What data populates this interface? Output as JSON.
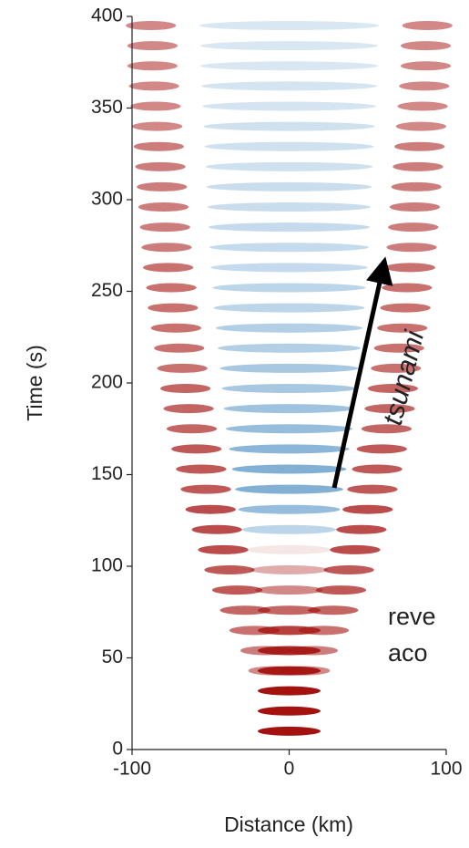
{
  "chart_data": {
    "type": "heatmap",
    "x_label": "Distance (km)",
    "y_label": "Time (s)",
    "xlim": [
      -100,
      100
    ],
    "ylim": [
      0,
      400
    ],
    "xticks": [
      -100,
      0,
      100
    ],
    "yticks": [
      0,
      50,
      100,
      150,
      200,
      250,
      300,
      350,
      400
    ],
    "positive_color": "#a3120f",
    "negative_color": "#3f86bf",
    "rows": {
      "time": [
        10,
        21,
        32,
        43,
        54,
        65,
        76,
        87,
        98,
        109,
        120,
        131,
        142,
        153,
        164,
        175,
        186,
        197,
        208,
        219,
        230,
        241,
        252,
        263,
        274,
        285,
        296,
        307,
        318,
        329,
        340,
        351,
        362,
        373,
        384,
        395
      ],
      "center": [
        1.0,
        1.0,
        1.0,
        0.95,
        0.9,
        0.8,
        0.65,
        0.5,
        0.35,
        0.1,
        -0.35,
        -0.55,
        -0.65,
        -0.65,
        -0.6,
        -0.55,
        -0.5,
        -0.45,
        -0.45,
        -0.4,
        -0.4,
        -0.35,
        -0.35,
        -0.3,
        -0.3,
        -0.3,
        -0.28,
        -0.28,
        -0.25,
        -0.25,
        -0.25,
        -0.22,
        -0.22,
        -0.2,
        -0.2,
        -0.2
      ],
      "side_distance": [
        0,
        0,
        0,
        10,
        15,
        22,
        28,
        33,
        38,
        42,
        46,
        50,
        53,
        56,
        59,
        62,
        64,
        66,
        68,
        70,
        72,
        74,
        75,
        77,
        78,
        79,
        80,
        81,
        82,
        83,
        84,
        85,
        86,
        87,
        87,
        88
      ],
      "side": [
        0,
        0,
        0,
        0.5,
        0.55,
        0.6,
        0.65,
        0.7,
        0.7,
        0.75,
        0.75,
        0.75,
        0.7,
        0.7,
        0.7,
        0.65,
        0.65,
        0.65,
        0.6,
        0.6,
        0.6,
        0.6,
        0.6,
        0.6,
        0.55,
        0.55,
        0.55,
        0.55,
        0.55,
        0.55,
        0.5,
        0.5,
        0.5,
        0.5,
        0.5,
        0.5
      ]
    },
    "annotations": [
      "tsunami",
      "reve",
      "aco"
    ]
  }
}
